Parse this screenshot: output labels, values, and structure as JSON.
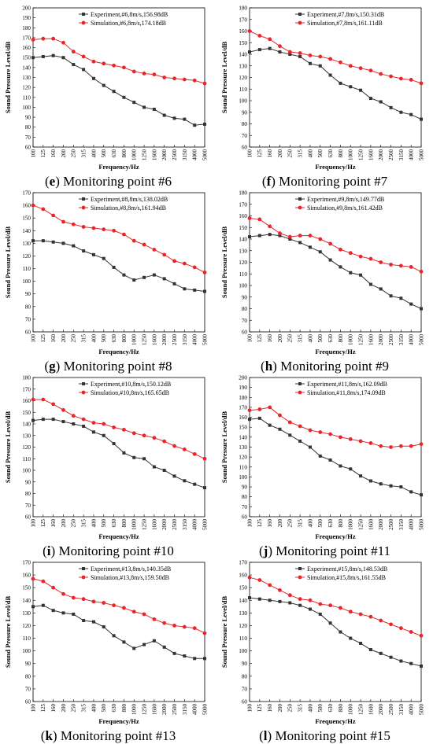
{
  "figure": {
    "xlabel": "Frequency/Hz",
    "ylabel": "Sound Pressure Level/dB",
    "categories": [
      "100",
      "125",
      "160",
      "200",
      "250",
      "315",
      "400",
      "500",
      "630",
      "800",
      "1000",
      "1250",
      "1600",
      "2000",
      "2500",
      "3150",
      "4000",
      "5000"
    ]
  },
  "colors": {
    "experiment": "#333333",
    "simulation": "#e8262a"
  },
  "chart_data": [
    {
      "type": "line",
      "caption_letter": "e",
      "caption_text": "Monitoring point #6",
      "ylim": [
        60,
        200
      ],
      "yticks": [
        60,
        70,
        80,
        90,
        100,
        110,
        120,
        130,
        140,
        150,
        160,
        170,
        180,
        190,
        200
      ],
      "series": [
        {
          "name": "Experiment,#6,8m/s,156.98dB",
          "values": [
            150,
            151,
            152,
            150,
            143,
            138,
            129,
            122,
            116,
            110,
            105,
            100,
            98,
            92,
            89,
            88,
            82,
            83
          ]
        },
        {
          "name": "Simulation,#6,8m/s,174.18dB",
          "values": [
            168,
            169,
            169,
            165,
            156,
            151,
            146,
            144,
            142,
            140,
            136,
            134,
            133,
            130,
            129,
            128,
            127,
            124
          ]
        }
      ]
    },
    {
      "type": "line",
      "caption_letter": "f",
      "caption_text": "Monitoring point #7",
      "ylim": [
        60,
        180
      ],
      "yticks": [
        60,
        70,
        80,
        90,
        100,
        110,
        120,
        130,
        140,
        150,
        160,
        170,
        180
      ],
      "series": [
        {
          "name": "Experiment,#7,8m/s,150.31dB",
          "values": [
            142,
            144,
            145,
            142,
            140,
            138,
            132,
            130,
            122,
            115,
            112,
            109,
            102,
            99,
            94,
            90,
            88,
            84
          ]
        },
        {
          "name": "Simulation,#7,8m/s,161.11dB",
          "values": [
            160,
            156,
            153,
            147,
            142,
            141,
            139,
            138,
            136,
            133,
            130,
            128,
            126,
            123,
            121,
            119,
            118,
            115
          ]
        }
      ]
    },
    {
      "type": "line",
      "caption_letter": "g",
      "caption_text": "Monitoring point #8",
      "ylim": [
        60,
        170
      ],
      "yticks": [
        60,
        70,
        80,
        90,
        100,
        110,
        120,
        130,
        140,
        150,
        160,
        170
      ],
      "series": [
        {
          "name": "Experiment,#8,8m/s,138.02dB",
          "values": [
            132,
            132,
            131,
            130,
            128,
            124,
            121,
            118,
            111,
            105,
            101,
            103,
            105,
            102,
            98,
            94,
            93,
            92
          ]
        },
        {
          "name": "Simulation,#8,8m/s,161.94dB",
          "values": [
            160,
            157,
            152,
            147,
            145,
            143,
            142,
            141,
            140,
            137,
            132,
            129,
            125,
            121,
            116,
            114,
            111,
            107
          ]
        }
      ]
    },
    {
      "type": "line",
      "caption_letter": "h",
      "caption_text": "Monitoring point #9",
      "ylim": [
        60,
        180
      ],
      "yticks": [
        60,
        70,
        80,
        90,
        100,
        110,
        120,
        130,
        140,
        150,
        160,
        170,
        180
      ],
      "series": [
        {
          "name": "Experiment,#9,8m/s,149.77dB",
          "values": [
            142,
            143,
            144,
            143,
            140,
            137,
            133,
            129,
            122,
            116,
            111,
            109,
            101,
            97,
            91,
            89,
            84,
            80
          ]
        },
        {
          "name": "Simulation,#9,8m/s,161.42dB",
          "values": [
            158,
            157,
            151,
            145,
            142,
            143,
            143,
            140,
            136,
            131,
            128,
            125,
            123,
            120,
            118,
            117,
            116,
            112
          ]
        }
      ]
    },
    {
      "type": "line",
      "caption_letter": "i",
      "caption_text": "Monitoring point #10",
      "ylim": [
        60,
        180
      ],
      "yticks": [
        60,
        70,
        80,
        90,
        100,
        110,
        120,
        130,
        140,
        150,
        160,
        170,
        180
      ],
      "series": [
        {
          "name": "Experiment,#10,8m/s,150.12dB",
          "values": [
            143,
            144,
            144,
            142,
            140,
            138,
            133,
            130,
            123,
            115,
            111,
            110,
            103,
            100,
            95,
            91,
            88,
            85
          ]
        },
        {
          "name": "Simulation,#10,8m/s,165.65dB",
          "values": [
            161,
            161,
            157,
            152,
            147,
            144,
            141,
            140,
            137,
            135,
            132,
            130,
            128,
            125,
            121,
            118,
            114,
            110
          ]
        }
      ]
    },
    {
      "type": "line",
      "caption_letter": "j",
      "caption_text": "Monitoring point #11",
      "ylim": [
        60,
        200
      ],
      "yticks": [
        60,
        70,
        80,
        90,
        100,
        110,
        120,
        130,
        140,
        150,
        160,
        170,
        180,
        190,
        200
      ],
      "series": [
        {
          "name": "Experiment,#11,8m/s,162.09dB",
          "values": [
            158,
            159,
            152,
            148,
            142,
            136,
            130,
            121,
            117,
            111,
            108,
            101,
            96,
            93,
            91,
            90,
            85,
            82
          ]
        },
        {
          "name": "Simulation,#11,8m/s,174.09dB",
          "values": [
            167,
            168,
            170,
            162,
            155,
            151,
            147,
            145,
            143,
            140,
            138,
            136,
            134,
            131,
            130,
            131,
            131,
            133
          ]
        }
      ]
    },
    {
      "type": "line",
      "caption_letter": "k",
      "caption_text": "Monitoring point #13",
      "ylim": [
        60,
        170
      ],
      "yticks": [
        60,
        70,
        80,
        90,
        100,
        110,
        120,
        130,
        140,
        150,
        160,
        170
      ],
      "series": [
        {
          "name": "Experiment,#13,8m/s,140.35dB",
          "values": [
            135,
            136,
            132,
            130,
            129,
            124,
            123,
            119,
            112,
            107,
            102,
            105,
            108,
            103,
            98,
            96,
            94,
            94
          ]
        },
        {
          "name": "Simulation,#13,8m/s,159.50dB",
          "values": [
            157,
            155,
            150,
            145,
            142,
            141,
            139,
            138,
            136,
            134,
            131,
            129,
            125,
            122,
            120,
            119,
            118,
            114
          ]
        }
      ]
    },
    {
      "type": "line",
      "caption_letter": "l",
      "caption_text": "Monitoring point #15",
      "ylim": [
        60,
        170
      ],
      "yticks": [
        60,
        70,
        80,
        90,
        100,
        110,
        120,
        130,
        140,
        150,
        160,
        170
      ],
      "series": [
        {
          "name": "Experiment,#15,8m/s,148.53dB",
          "values": [
            142,
            141,
            140,
            139,
            138,
            136,
            133,
            129,
            122,
            115,
            110,
            106,
            101,
            98,
            95,
            92,
            90,
            88
          ]
        },
        {
          "name": "Simulation,#15,8m/s,161.55dB",
          "values": [
            158,
            156,
            152,
            148,
            144,
            141,
            140,
            137,
            136,
            134,
            131,
            129,
            127,
            124,
            121,
            118,
            115,
            112
          ]
        }
      ]
    }
  ]
}
